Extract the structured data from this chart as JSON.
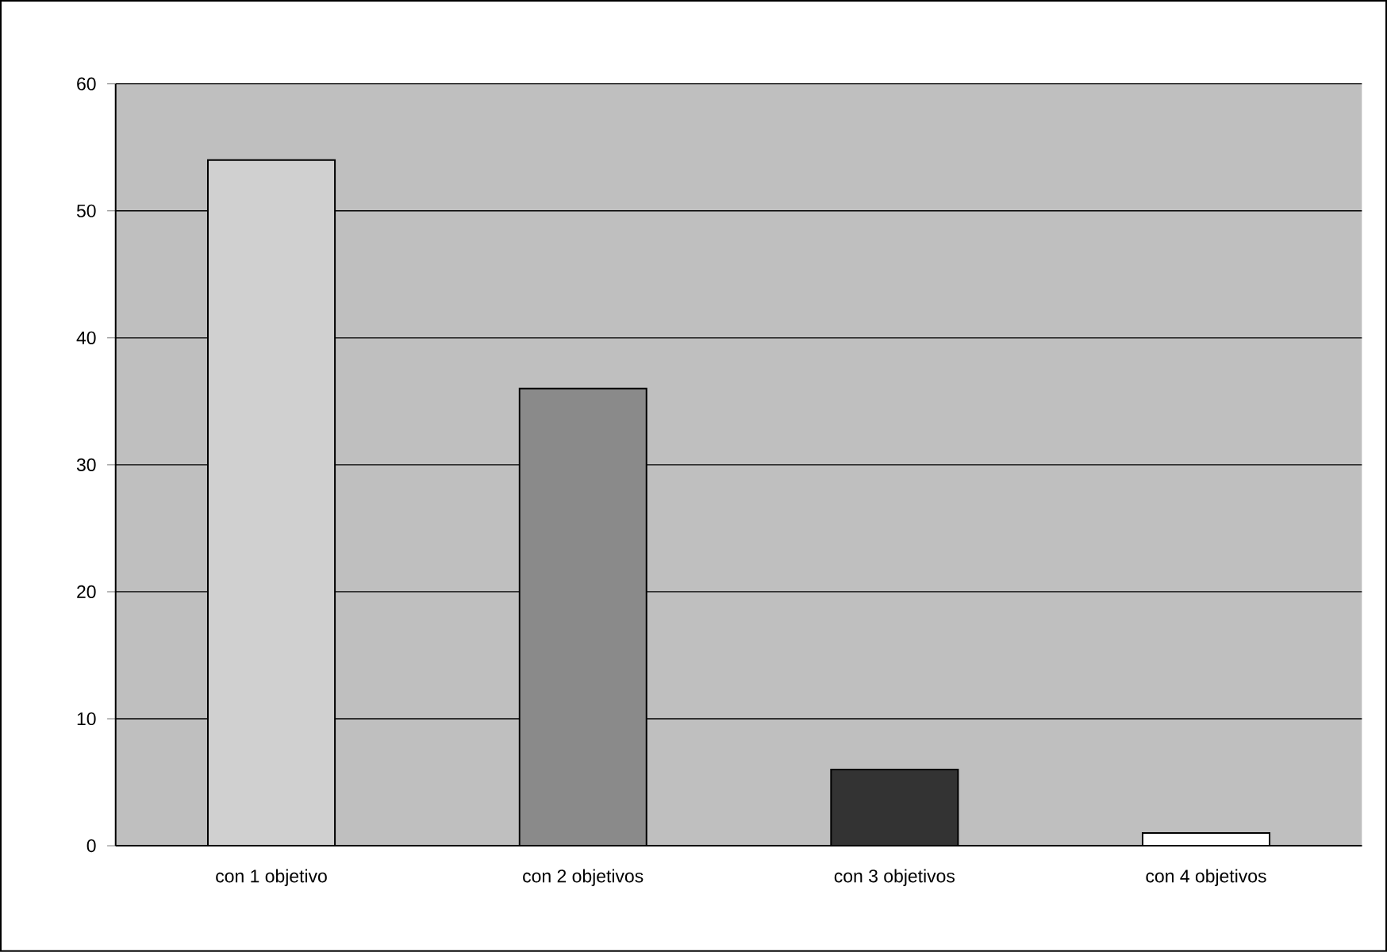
{
  "chart_data": {
    "type": "bar",
    "categories": [
      "con 1 objetivo",
      "con 2 objetivos",
      "con 3 objetivos",
      "con 4 objetivos"
    ],
    "values": [
      54,
      36,
      6,
      1
    ],
    "colors": [
      "#d0d0d0",
      "#8a8a8a",
      "#333333",
      "#ffffff"
    ],
    "ylim": [
      0,
      60
    ],
    "yticks": [
      0,
      10,
      20,
      30,
      40,
      50,
      60
    ],
    "grid": "y"
  }
}
